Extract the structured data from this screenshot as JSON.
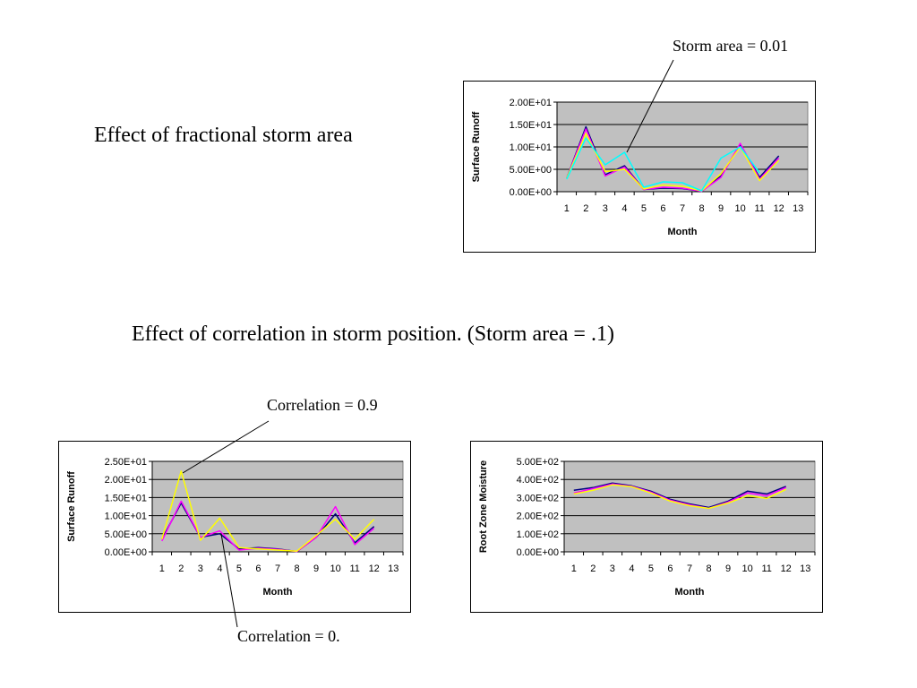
{
  "slide": {
    "heading_storm_area": "Effect of fractional storm area",
    "heading_correlation": "Effect of correlation in storm position.  (Storm area = .1)",
    "callout_storm_area": "Storm area = 0.01",
    "callout_corr_high": "Correlation = 0.9",
    "callout_corr_zero": "Correlation = 0."
  },
  "chart_data": [
    {
      "type": "line",
      "xlabel": "Month",
      "ylabel": "Surface Runoff",
      "ylim": [
        0,
        20
      ],
      "yticks": [
        "0.00E+00",
        "5.00E+00",
        "1.00E+01",
        "1.50E+01",
        "2.00E+01"
      ],
      "xticks": [
        "1",
        "2",
        "3",
        "4",
        "5",
        "6",
        "7",
        "8",
        "9",
        "10",
        "11",
        "12",
        "13"
      ],
      "grid": true,
      "plot_bg": "#c0c0c0",
      "series": [
        {
          "color": "#000080",
          "x": [
            1,
            2,
            3,
            4,
            5,
            6,
            7,
            8,
            9,
            10,
            11,
            12
          ],
          "values": [
            3,
            14.5,
            3.8,
            5.8,
            0.5,
            0.8,
            0.7,
            0.1,
            3.5,
            10.5,
            3.2,
            8
          ]
        },
        {
          "color": "#ff00ff",
          "x": [
            1,
            2,
            3,
            4,
            5,
            6,
            7,
            8,
            9,
            10,
            11,
            12
          ],
          "values": [
            3,
            14,
            3.5,
            5.5,
            0.5,
            1,
            0.8,
            0.1,
            3.2,
            10.8,
            2.8,
            7.5
          ]
        },
        {
          "color": "#ffff00",
          "x": [
            1,
            2,
            3,
            4,
            5,
            6,
            7,
            8,
            9,
            10,
            11,
            12
          ],
          "values": [
            3,
            13,
            4.5,
            5,
            0.6,
            1.5,
            1.2,
            0.2,
            4,
            10,
            2.5,
            7
          ]
        },
        {
          "color": "#00ffff",
          "x": [
            1,
            2,
            3,
            4,
            5,
            6,
            7,
            8,
            9,
            10,
            11
          ],
          "values": [
            2.8,
            12,
            6,
            8.8,
            1,
            2.2,
            2,
            0.2,
            7.5,
            10,
            4.2
          ]
        }
      ]
    },
    {
      "type": "line",
      "xlabel": "Month",
      "ylabel": "Surface Runoff",
      "ylim": [
        0,
        25
      ],
      "yticks": [
        "0.00E+00",
        "5.00E+00",
        "1.00E+01",
        "1.50E+01",
        "2.00E+01",
        "2.50E+01"
      ],
      "xticks": [
        "1",
        "2",
        "3",
        "4",
        "5",
        "6",
        "7",
        "8",
        "9",
        "10",
        "11",
        "12",
        "13"
      ],
      "grid": true,
      "plot_bg": "#c0c0c0",
      "series": [
        {
          "color": "#000080",
          "x": [
            1,
            2,
            3,
            4,
            5,
            6,
            7,
            8,
            9,
            10,
            11,
            12
          ],
          "values": [
            3.5,
            13.5,
            4,
            5,
            0.8,
            1.2,
            0.8,
            0.1,
            4,
            10.5,
            2.5,
            7
          ]
        },
        {
          "color": "#ff00ff",
          "x": [
            1,
            2,
            3,
            4,
            5,
            6,
            7,
            8,
            9,
            10,
            11,
            12
          ],
          "values": [
            3,
            14,
            4,
            5.8,
            0.5,
            1,
            0.7,
            0.1,
            4,
            12.5,
            2,
            6.5
          ]
        },
        {
          "color": "#ffff00",
          "x": [
            1,
            2,
            3,
            4,
            5,
            6,
            7,
            8,
            9,
            10,
            11,
            12
          ],
          "values": [
            3.5,
            22.3,
            3.2,
            9.3,
            1.2,
            0.8,
            0.5,
            0.2,
            4.5,
            9,
            3.5,
            9
          ]
        }
      ]
    },
    {
      "type": "line",
      "xlabel": "Month",
      "ylabel": "Root Zone Moisture",
      "ylim": [
        0,
        500
      ],
      "yticks": [
        "0.00E+00",
        "1.00E+02",
        "2.00E+02",
        "3.00E+02",
        "4.00E+02",
        "5.00E+02"
      ],
      "xticks": [
        "1",
        "2",
        "3",
        "4",
        "5",
        "6",
        "7",
        "8",
        "9",
        "10",
        "11",
        "12",
        "13"
      ],
      "grid": true,
      "plot_bg": "#c0c0c0",
      "series": [
        {
          "color": "#000080",
          "x": [
            1,
            2,
            3,
            4,
            5,
            6,
            7,
            8,
            9,
            10,
            11,
            12
          ],
          "values": [
            340,
            355,
            380,
            365,
            335,
            290,
            265,
            245,
            280,
            335,
            320,
            362
          ]
        },
        {
          "color": "#ff00ff",
          "x": [
            1,
            2,
            3,
            4,
            5,
            6,
            7,
            8,
            9,
            10,
            11,
            12
          ],
          "values": [
            325,
            350,
            375,
            362,
            330,
            285,
            260,
            240,
            275,
            325,
            310,
            355
          ]
        },
        {
          "color": "#ffff00",
          "x": [
            1,
            2,
            3,
            4,
            5,
            6,
            7,
            8,
            9,
            10,
            11,
            12
          ],
          "values": [
            320,
            340,
            370,
            360,
            325,
            280,
            255,
            240,
            270,
            310,
            295,
            345
          ]
        }
      ]
    }
  ]
}
